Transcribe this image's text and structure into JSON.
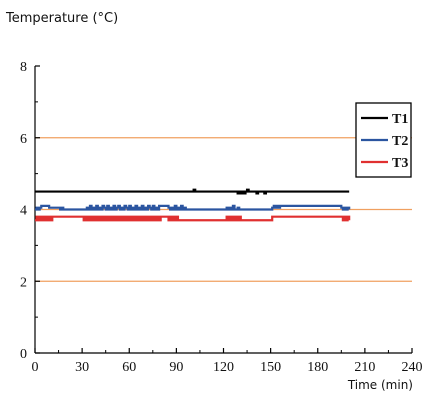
{
  "chart_data": {
    "type": "line",
    "ylabel": "Temperature (°C)",
    "xlabel": "Time (min)",
    "xlim": [
      0,
      240
    ],
    "ylim": [
      0,
      8
    ],
    "xticks": [
      0,
      30,
      60,
      90,
      120,
      150,
      180,
      210,
      240
    ],
    "yticks": [
      0,
      2,
      4,
      6,
      8
    ],
    "grid": false,
    "legend_position": "top-right",
    "reference_lines": [
      {
        "y": 6,
        "color": "#f0a060"
      },
      {
        "y": 4,
        "color": "#f0a060"
      },
      {
        "y": 2,
        "color": "#f0a060"
      }
    ],
    "series": [
      {
        "name": "T1",
        "color": "#000000",
        "x": [
          0,
          60,
          100,
          101,
          102,
          128,
          129,
          130,
          131,
          132,
          133,
          134,
          135,
          136,
          140,
          141,
          142,
          145,
          146,
          147,
          200
        ],
        "y": [
          4.5,
          4.5,
          4.5,
          4.55,
          4.5,
          4.5,
          4.45,
          4.5,
          4.45,
          4.5,
          4.45,
          4.5,
          4.55,
          4.5,
          4.5,
          4.45,
          4.5,
          4.5,
          4.45,
          4.5,
          4.5
        ]
      },
      {
        "name": "T2",
        "color": "#2b55a0",
        "x": [
          0,
          1,
          2,
          3,
          4,
          8,
          9,
          15,
          16,
          17,
          18,
          32,
          33,
          34,
          35,
          36,
          37,
          38,
          39,
          40,
          41,
          42,
          43,
          44,
          45,
          46,
          47,
          48,
          49,
          50,
          51,
          52,
          53,
          54,
          55,
          56,
          57,
          58,
          59,
          60,
          61,
          62,
          63,
          64,
          65,
          66,
          67,
          68,
          69,
          70,
          71,
          72,
          73,
          74,
          75,
          76,
          77,
          78,
          79,
          80,
          82,
          84,
          85,
          86,
          87,
          88,
          89,
          90,
          91,
          92,
          93,
          94,
          95,
          96,
          97,
          98,
          99,
          100,
          101,
          102,
          103,
          104,
          120,
          122,
          123,
          124,
          125,
          126,
          127,
          129,
          130,
          131,
          150,
          151,
          152,
          153,
          154,
          155,
          156,
          158,
          160,
          180,
          195,
          196,
          197,
          198,
          199,
          200
        ],
        "y": [
          4.0,
          4.05,
          4.0,
          4.05,
          4.1,
          4.1,
          4.05,
          4.05,
          4.0,
          4.05,
          4.0,
          4.0,
          4.05,
          4.0,
          4.1,
          4.0,
          4.05,
          4.0,
          4.1,
          4.0,
          4.05,
          4.0,
          4.1,
          4.05,
          4.0,
          4.1,
          4.0,
          4.05,
          4.0,
          4.1,
          4.0,
          4.05,
          4.1,
          4.0,
          4.05,
          4.0,
          4.1,
          4.05,
          4.0,
          4.1,
          4.0,
          4.05,
          4.0,
          4.1,
          4.0,
          4.05,
          4.0,
          4.1,
          4.0,
          4.05,
          4.0,
          4.1,
          4.05,
          4.0,
          4.1,
          4.0,
          4.05,
          4.0,
          4.1,
          4.1,
          4.1,
          4.1,
          4.05,
          4.0,
          4.05,
          4.0,
          4.1,
          4.0,
          4.05,
          4.0,
          4.1,
          4.0,
          4.05,
          4.0,
          4.0,
          4.0,
          4.0,
          4.0,
          4.0,
          4.0,
          4.0,
          4.0,
          4.0,
          4.05,
          4.0,
          4.05,
          4.0,
          4.1,
          4.0,
          4.05,
          4.0,
          4.0,
          4.0,
          4.05,
          4.1,
          4.05,
          4.1,
          4.05,
          4.1,
          4.1,
          4.1,
          4.1,
          4.05,
          4.0,
          4.05,
          4.0,
          4.05,
          4.0
        ]
      },
      {
        "name": "T3",
        "color": "#e03030",
        "x": [
          0,
          1,
          2,
          3,
          4,
          5,
          6,
          7,
          8,
          9,
          10,
          11,
          12,
          13,
          14,
          15,
          16,
          17,
          18,
          19,
          20,
          30,
          31,
          32,
          33,
          34,
          35,
          36,
          37,
          38,
          39,
          40,
          41,
          42,
          43,
          44,
          45,
          46,
          47,
          48,
          49,
          50,
          51,
          52,
          53,
          54,
          55,
          56,
          57,
          58,
          59,
          60,
          61,
          62,
          63,
          64,
          65,
          66,
          67,
          68,
          69,
          70,
          71,
          72,
          73,
          74,
          75,
          76,
          77,
          78,
          79,
          80,
          82,
          84,
          85,
          86,
          87,
          88,
          89,
          90,
          91,
          92,
          100,
          101,
          102,
          103,
          104,
          120,
          121,
          122,
          123,
          124,
          125,
          126,
          127,
          128,
          129,
          130,
          131,
          132,
          150,
          151,
          152,
          153,
          154,
          155,
          156,
          158,
          160,
          180,
          195,
          196,
          197,
          198,
          199,
          200
        ],
        "y": [
          3.7,
          3.8,
          3.7,
          3.8,
          3.7,
          3.8,
          3.7,
          3.8,
          3.7,
          3.8,
          3.7,
          3.8,
          3.8,
          3.8,
          3.8,
          3.8,
          3.8,
          3.8,
          3.8,
          3.8,
          3.8,
          3.8,
          3.7,
          3.8,
          3.7,
          3.8,
          3.7,
          3.8,
          3.7,
          3.8,
          3.7,
          3.8,
          3.7,
          3.8,
          3.7,
          3.8,
          3.7,
          3.8,
          3.7,
          3.8,
          3.7,
          3.8,
          3.7,
          3.8,
          3.7,
          3.8,
          3.7,
          3.8,
          3.7,
          3.8,
          3.7,
          3.8,
          3.7,
          3.8,
          3.7,
          3.8,
          3.7,
          3.8,
          3.7,
          3.8,
          3.7,
          3.8,
          3.7,
          3.8,
          3.7,
          3.8,
          3.7,
          3.8,
          3.7,
          3.8,
          3.7,
          3.8,
          3.8,
          3.8,
          3.7,
          3.8,
          3.7,
          3.8,
          3.7,
          3.8,
          3.7,
          3.7,
          3.7,
          3.7,
          3.7,
          3.7,
          3.7,
          3.7,
          3.7,
          3.8,
          3.7,
          3.8,
          3.7,
          3.8,
          3.7,
          3.8,
          3.7,
          3.8,
          3.7,
          3.7,
          3.7,
          3.8,
          3.8,
          3.8,
          3.8,
          3.8,
          3.8,
          3.8,
          3.8,
          3.8,
          3.8,
          3.7,
          3.8,
          3.7,
          3.8,
          3.7
        ]
      }
    ]
  }
}
